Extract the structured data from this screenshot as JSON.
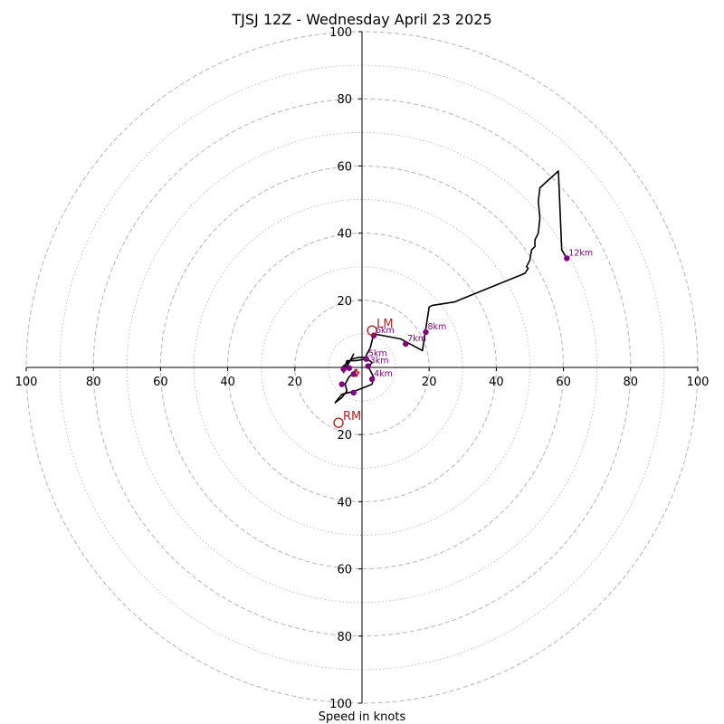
{
  "chart_data": {
    "type": "scatter",
    "title": "TJSJ 12Z - Wednesday April 23 2025",
    "xlabel": "Speed in knots",
    "xlim": [
      -100,
      100
    ],
    "ylim": [
      -100,
      100
    ],
    "major_rings": [
      20,
      40,
      60,
      80,
      100
    ],
    "minor_rings": [
      10,
      30,
      50,
      70,
      90
    ],
    "x_ticks": [
      {
        "value": -100,
        "label": "100"
      },
      {
        "value": -80,
        "label": "80"
      },
      {
        "value": -60,
        "label": "60"
      },
      {
        "value": -40,
        "label": "40"
      },
      {
        "value": -20,
        "label": "20"
      },
      {
        "value": 20,
        "label": "20"
      },
      {
        "value": 40,
        "label": "40"
      },
      {
        "value": 60,
        "label": "60"
      },
      {
        "value": 80,
        "label": "80"
      },
      {
        "value": 100,
        "label": "100"
      }
    ],
    "y_ticks": [
      {
        "value": 100,
        "label": "100"
      },
      {
        "value": 80,
        "label": "80"
      },
      {
        "value": 60,
        "label": "60"
      },
      {
        "value": 40,
        "label": "40"
      },
      {
        "value": 20,
        "label": "20"
      },
      {
        "value": -20,
        "label": "20"
      },
      {
        "value": -40,
        "label": "40"
      },
      {
        "value": -60,
        "label": "60"
      },
      {
        "value": -80,
        "label": "80"
      },
      {
        "value": -100,
        "label": "100"
      }
    ],
    "hodograph_trace": [
      [
        -1.5,
        -0.5
      ],
      [
        -2.5,
        -1.5
      ],
      [
        -4,
        -3
      ],
      [
        -5,
        -5
      ],
      [
        -4.5,
        -7
      ],
      [
        -6,
        -9
      ],
      [
        -8,
        -10.5
      ],
      [
        -6,
        -8
      ],
      [
        -2,
        -7
      ],
      [
        3,
        -5
      ],
      [
        3.5,
        -3
      ],
      [
        2,
        0
      ],
      [
        3,
        1.5
      ],
      [
        1.5,
        2.5
      ],
      [
        -2,
        2
      ],
      [
        -4.5,
        2
      ],
      [
        -5.5,
        -1.5
      ],
      [
        -3,
        3
      ],
      [
        -2.5,
        4
      ],
      [
        -3.5,
        2
      ],
      [
        -6,
        0
      ],
      [
        -3,
        2.5
      ],
      [
        -1,
        3
      ],
      [
        1,
        3
      ],
      [
        2.5,
        6
      ],
      [
        3.5,
        10
      ],
      [
        11.5,
        8.5
      ],
      [
        18,
        5
      ],
      [
        20,
        18
      ],
      [
        21,
        18.5
      ],
      [
        27.5,
        19.5
      ],
      [
        48.5,
        28
      ],
      [
        49.5,
        29.5
      ],
      [
        49,
        30
      ],
      [
        50,
        32
      ],
      [
        50.5,
        35
      ],
      [
        51.5,
        36
      ],
      [
        51.5,
        38
      ],
      [
        52.5,
        40
      ],
      [
        53,
        44.5
      ],
      [
        52.5,
        49.5
      ],
      [
        53,
        53.5
      ],
      [
        58.5,
        58.5
      ],
      [
        59.5,
        35
      ],
      [
        61,
        32.5
      ]
    ],
    "height_markers": [
      {
        "label": "",
        "x": -2.5,
        "y": -2.0
      },
      {
        "label": "",
        "x": -3.8,
        "y": -0.2
      },
      {
        "label": "",
        "x": -5.5,
        "y": -0.5
      },
      {
        "label": "",
        "x": -6.0,
        "y": -5.0
      },
      {
        "label": "",
        "x": -2.5,
        "y": -7.5
      },
      {
        "label": "4km",
        "x": 3.0,
        "y": -3.5
      },
      {
        "label": "3km",
        "x": 1.8,
        "y": 0.4
      },
      {
        "label": "5km",
        "x": 1.3,
        "y": 2.5
      },
      {
        "label": "6km",
        "x": 3.5,
        "y": 9.5
      },
      {
        "label": "7km",
        "x": 13.0,
        "y": 7.0
      },
      {
        "label": "8km",
        "x": 19.0,
        "y": 10.5
      },
      {
        "label": "12km",
        "x": 61.0,
        "y": 32.5
      }
    ],
    "storm_motion": [
      {
        "label": "LM",
        "x": 3,
        "y": 11
      },
      {
        "label": "RM",
        "x": -7,
        "y": -16.5
      }
    ],
    "mean_wind_point": {
      "x": -1,
      "y": -1.5
    },
    "colors": {
      "trace": "#000000",
      "height_markers": "#800080",
      "storm_motion": "#b22222",
      "mean_wind": "#ff0000",
      "rings": "#bbbbbb",
      "axes": "#000000"
    },
    "grid": true
  }
}
